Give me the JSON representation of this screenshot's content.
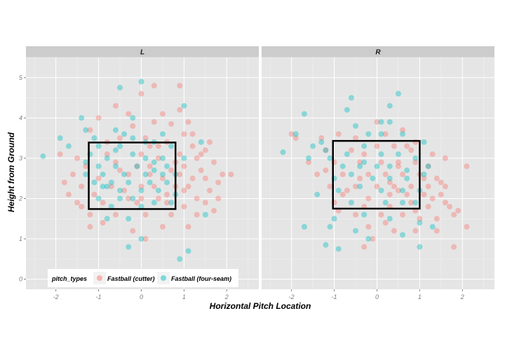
{
  "chart_data": {
    "type": "scatter",
    "facets": [
      "L",
      "R"
    ],
    "xlabel": "Horizontal Pitch Location",
    "ylabel": "Height from Ground",
    "xlim": [
      -2.7,
      2.75
    ],
    "ylim": [
      -0.25,
      5.5
    ],
    "x_ticks": [
      -2,
      -1,
      0,
      1,
      2
    ],
    "y_ticks": [
      0,
      1,
      2,
      3,
      4,
      5
    ],
    "grid": true,
    "legend": {
      "title": "pitch_types",
      "position": "bottom-left",
      "entries": [
        {
          "label": "Fastball (cutter)",
          "color": "#F8766D"
        },
        {
          "label": "Fastball (four-seam)",
          "color": "#00BFC4"
        }
      ]
    },
    "strike_zone": {
      "x": [
        -1.23,
        0.8
      ],
      "y": [
        1.74,
        3.39
      ]
    },
    "strike_zone_R": {
      "x": [
        -1.03,
        1.0
      ],
      "y": [
        1.75,
        3.43
      ]
    },
    "series": [
      {
        "name": "Fastball (cutter)",
        "color": "#F8766D",
        "points_L": [
          [
            0.3,
            4.8
          ],
          [
            0.9,
            4.8
          ],
          [
            -0.6,
            4.3
          ],
          [
            0.0,
            4.6
          ],
          [
            -0.3,
            4.1
          ],
          [
            0.5,
            4.1
          ],
          [
            -1.0,
            4.0
          ],
          [
            0.3,
            3.9
          ],
          [
            0.7,
            3.85
          ],
          [
            -0.2,
            3.8
          ],
          [
            1.0,
            3.6
          ],
          [
            1.2,
            3.6
          ],
          [
            -0.5,
            3.5
          ],
          [
            0.1,
            3.5
          ],
          [
            0.6,
            3.4
          ],
          [
            1.2,
            3.3
          ],
          [
            1.5,
            3.2
          ],
          [
            -1.5,
            3.0
          ],
          [
            -0.8,
            3.1
          ],
          [
            0.0,
            3.1
          ],
          [
            0.4,
            3.0
          ],
          [
            0.9,
            3.1
          ],
          [
            1.3,
            3.0
          ],
          [
            1.7,
            2.9
          ],
          [
            -1.3,
            2.8
          ],
          [
            -0.5,
            2.7
          ],
          [
            0.2,
            2.8
          ],
          [
            0.7,
            2.7
          ],
          [
            1.0,
            2.8
          ],
          [
            1.4,
            2.7
          ],
          [
            1.9,
            2.6
          ],
          [
            -1.6,
            2.6
          ],
          [
            -1.0,
            2.5
          ],
          [
            -0.3,
            2.6
          ],
          [
            0.5,
            2.5
          ],
          [
            0.9,
            2.6
          ],
          [
            1.2,
            2.5
          ],
          [
            1.5,
            2.5
          ],
          [
            2.1,
            2.6
          ],
          [
            -1.4,
            2.3
          ],
          [
            -0.7,
            2.3
          ],
          [
            0.0,
            2.3
          ],
          [
            0.3,
            2.3
          ],
          [
            0.8,
            2.3
          ],
          [
            1.1,
            2.3
          ],
          [
            1.6,
            2.2
          ],
          [
            -1.1,
            2.1
          ],
          [
            -0.3,
            2.0
          ],
          [
            0.4,
            2.0
          ],
          [
            1.3,
            2.0
          ],
          [
            1.8,
            2.0
          ],
          [
            -1.5,
            1.9
          ],
          [
            -0.9,
            1.9
          ],
          [
            -0.1,
            1.9
          ],
          [
            0.6,
            1.9
          ],
          [
            1.0,
            1.8
          ],
          [
            1.5,
            1.9
          ],
          [
            -1.2,
            1.6
          ],
          [
            -0.6,
            1.6
          ],
          [
            0.1,
            1.6
          ],
          [
            0.7,
            1.6
          ],
          [
            1.3,
            1.6
          ],
          [
            -0.9,
            1.4
          ],
          [
            -0.2,
            1.2
          ],
          [
            0.5,
            1.3
          ],
          [
            -1.2,
            1.3
          ],
          [
            0.1,
            1.0
          ],
          [
            1.1,
            1.3
          ],
          [
            -1.8,
            2.4
          ],
          [
            -1.9,
            3.1
          ],
          [
            1.6,
            3.4
          ],
          [
            0.2,
            3.3
          ],
          [
            -0.6,
            2.9
          ],
          [
            0.8,
            2.9
          ],
          [
            -1.7,
            2.1
          ],
          [
            1.8,
            2.4
          ],
          [
            0.6,
            2.1
          ],
          [
            -0.4,
            2.2
          ],
          [
            1.4,
            3.1
          ],
          [
            -0.8,
            3.4
          ],
          [
            1.1,
            3.9
          ],
          [
            -1.2,
            3.7
          ],
          [
            0.9,
            4.2
          ],
          [
            0.2,
            2.6
          ],
          [
            -0.1,
            2.8
          ],
          [
            0.4,
            3.3
          ],
          [
            1.0,
            2.2
          ],
          [
            -1.4,
            1.8
          ],
          [
            1.7,
            1.7
          ],
          [
            0.0,
            2.0
          ]
        ],
        "points_R": [
          [
            -2.0,
            3.6
          ],
          [
            -1.9,
            3.5
          ],
          [
            -1.3,
            3.5
          ],
          [
            -0.9,
            3.6
          ],
          [
            -0.5,
            3.5
          ],
          [
            0.2,
            3.6
          ],
          [
            0.6,
            3.7
          ],
          [
            0.9,
            3.4
          ],
          [
            -1.2,
            3.2
          ],
          [
            -0.6,
            3.2
          ],
          [
            0.0,
            3.3
          ],
          [
            0.4,
            3.3
          ],
          [
            0.8,
            3.2
          ],
          [
            1.3,
            3.1
          ],
          [
            1.6,
            3.0
          ],
          [
            -1.0,
            2.9
          ],
          [
            -0.4,
            2.9
          ],
          [
            0.1,
            2.9
          ],
          [
            0.5,
            2.9
          ],
          [
            0.9,
            2.9
          ],
          [
            1.2,
            2.8
          ],
          [
            2.1,
            2.8
          ],
          [
            -1.4,
            2.6
          ],
          [
            -0.8,
            2.6
          ],
          [
            -0.2,
            2.6
          ],
          [
            0.2,
            2.6
          ],
          [
            0.6,
            2.6
          ],
          [
            1.0,
            2.6
          ],
          [
            1.4,
            2.5
          ],
          [
            -1.1,
            2.3
          ],
          [
            -0.5,
            2.3
          ],
          [
            0.0,
            2.3
          ],
          [
            0.4,
            2.3
          ],
          [
            0.8,
            2.3
          ],
          [
            1.2,
            2.3
          ],
          [
            1.6,
            2.3
          ],
          [
            -0.8,
            2.1
          ],
          [
            -0.2,
            2.0
          ],
          [
            0.3,
            2.1
          ],
          [
            0.7,
            2.1
          ],
          [
            1.1,
            2.1
          ],
          [
            1.5,
            2.1
          ],
          [
            -1.0,
            1.9
          ],
          [
            -0.3,
            1.8
          ],
          [
            0.3,
            1.8
          ],
          [
            0.8,
            1.9
          ],
          [
            1.2,
            1.8
          ],
          [
            1.7,
            1.8
          ],
          [
            -0.5,
            1.6
          ],
          [
            0.1,
            1.6
          ],
          [
            0.6,
            1.6
          ],
          [
            1.0,
            1.5
          ],
          [
            1.4,
            1.5
          ],
          [
            1.8,
            1.6
          ],
          [
            -0.2,
            1.3
          ],
          [
            0.4,
            1.2
          ],
          [
            0.9,
            1.2
          ],
          [
            1.4,
            1.2
          ],
          [
            2.1,
            1.3
          ],
          [
            -0.1,
            1.0
          ],
          [
            1.8,
            0.8
          ],
          [
            -0.3,
            0.8
          ],
          [
            0.5,
            2.8
          ],
          [
            -0.7,
            2.2
          ],
          [
            1.3,
            2.0
          ],
          [
            0.0,
            3.9
          ],
          [
            -1.6,
            2.9
          ],
          [
            0.3,
            2.4
          ],
          [
            1.1,
            2.5
          ],
          [
            -0.3,
            3.1
          ],
          [
            0.7,
            3.3
          ],
          [
            1.5,
            2.4
          ],
          [
            -0.9,
            1.7
          ],
          [
            0.2,
            1.4
          ],
          [
            1.6,
            1.9
          ],
          [
            -1.2,
            2.7
          ],
          [
            0.5,
            2.2
          ],
          [
            0.9,
            1.7
          ],
          [
            1.9,
            1.7
          ],
          [
            -0.4,
            2.5
          ]
        ]
      },
      {
        "name": "Fastball (four-seam)",
        "color": "#00BFC4",
        "points_L": [
          [
            -2.3,
            3.05
          ],
          [
            -1.9,
            3.5
          ],
          [
            -1.7,
            3.3
          ],
          [
            -1.3,
            3.7
          ],
          [
            -1.4,
            4.0
          ],
          [
            -1.1,
            3.5
          ],
          [
            -0.5,
            4.75
          ],
          [
            0.0,
            4.9
          ],
          [
            1.0,
            4.3
          ],
          [
            -0.6,
            3.7
          ],
          [
            -0.4,
            3.6
          ],
          [
            -0.2,
            3.5
          ],
          [
            0.1,
            3.4
          ],
          [
            -1.0,
            3.3
          ],
          [
            -0.5,
            3.3
          ],
          [
            0.3,
            3.4
          ],
          [
            -1.2,
            3.1
          ],
          [
            -0.8,
            3.0
          ],
          [
            -0.2,
            3.1
          ],
          [
            0.5,
            3.0
          ],
          [
            0.7,
            3.3
          ],
          [
            1.4,
            3.4
          ],
          [
            -1.0,
            2.8
          ],
          [
            -0.6,
            2.8
          ],
          [
            -0.1,
            2.8
          ],
          [
            0.3,
            2.9
          ],
          [
            0.6,
            2.8
          ],
          [
            -1.3,
            2.6
          ],
          [
            -0.9,
            2.6
          ],
          [
            -0.4,
            2.6
          ],
          [
            0.1,
            2.6
          ],
          [
            0.5,
            2.6
          ],
          [
            0.8,
            2.6
          ],
          [
            -1.1,
            2.4
          ],
          [
            -0.7,
            2.4
          ],
          [
            -0.3,
            2.4
          ],
          [
            0.2,
            2.4
          ],
          [
            0.6,
            2.4
          ],
          [
            -0.9,
            2.3
          ],
          [
            -0.5,
            2.2
          ],
          [
            0.0,
            2.2
          ],
          [
            0.4,
            2.2
          ],
          [
            0.8,
            2.1
          ],
          [
            -1.0,
            2.0
          ],
          [
            -0.2,
            2.0
          ],
          [
            0.3,
            1.9
          ],
          [
            0.7,
            1.9
          ],
          [
            -0.7,
            1.8
          ],
          [
            0.0,
            1.8
          ],
          [
            1.5,
            1.6
          ],
          [
            -0.3,
            1.5
          ],
          [
            -0.8,
            1.5
          ],
          [
            -0.3,
            0.8
          ],
          [
            0.0,
            1.0
          ],
          [
            1.1,
            0.7
          ],
          [
            0.9,
            0.5
          ],
          [
            -0.6,
            3.2
          ],
          [
            0.1,
            3.0
          ],
          [
            -1.3,
            2.9
          ],
          [
            0.5,
            3.6
          ],
          [
            -0.8,
            2.3
          ],
          [
            0.3,
            2.7
          ],
          [
            -0.5,
            2.0
          ],
          [
            1.0,
            3.0
          ],
          [
            -0.2,
            4.0
          ]
        ],
        "points_R": [
          [
            -2.2,
            3.15
          ],
          [
            -1.9,
            3.6
          ],
          [
            -1.7,
            4.1
          ],
          [
            -1.6,
            3.0
          ],
          [
            -1.5,
            3.3
          ],
          [
            -1.3,
            3.4
          ],
          [
            -1.2,
            3.2
          ],
          [
            -1.4,
            2.1
          ],
          [
            -1.7,
            1.3
          ],
          [
            -1.2,
            0.85
          ],
          [
            -0.9,
            0.75
          ],
          [
            -1.1,
            1.3
          ],
          [
            -0.6,
            4.5
          ],
          [
            -0.7,
            4.2
          ],
          [
            0.1,
            3.6
          ],
          [
            0.3,
            3.9
          ],
          [
            0.5,
            4.6
          ],
          [
            0.3,
            4.3
          ],
          [
            -0.5,
            3.8
          ],
          [
            -0.2,
            3.6
          ],
          [
            0.1,
            3.9
          ],
          [
            0.6,
            3.6
          ],
          [
            1.1,
            3.4
          ],
          [
            -1.1,
            3.0
          ],
          [
            -0.7,
            3.1
          ],
          [
            -0.3,
            3.3
          ],
          [
            0.1,
            3.1
          ],
          [
            0.5,
            3.1
          ],
          [
            0.9,
            3.0
          ],
          [
            -0.8,
            2.8
          ],
          [
            -0.4,
            2.8
          ],
          [
            0.0,
            2.8
          ],
          [
            0.3,
            2.8
          ],
          [
            0.7,
            2.7
          ],
          [
            1.2,
            2.8
          ],
          [
            -1.0,
            2.5
          ],
          [
            -0.6,
            2.6
          ],
          [
            -0.1,
            2.5
          ],
          [
            0.3,
            2.5
          ],
          [
            0.7,
            2.5
          ],
          [
            1.1,
            2.6
          ],
          [
            -0.9,
            2.2
          ],
          [
            -0.4,
            2.3
          ],
          [
            0.1,
            2.2
          ],
          [
            0.6,
            2.2
          ],
          [
            1.0,
            2.2
          ],
          [
            -0.6,
            1.9
          ],
          [
            0.2,
            1.9
          ],
          [
            0.6,
            1.9
          ],
          [
            0.9,
            1.9
          ],
          [
            -0.3,
            1.6
          ],
          [
            0.3,
            1.5
          ],
          [
            1.0,
            1.4
          ],
          [
            1.3,
            1.3
          ],
          [
            -0.5,
            1.2
          ],
          [
            0.6,
            1.1
          ],
          [
            -1.0,
            1.5
          ],
          [
            1.0,
            0.8
          ],
          [
            -0.2,
            1.0
          ],
          [
            -0.3,
            2.9
          ]
        ]
      }
    ]
  }
}
